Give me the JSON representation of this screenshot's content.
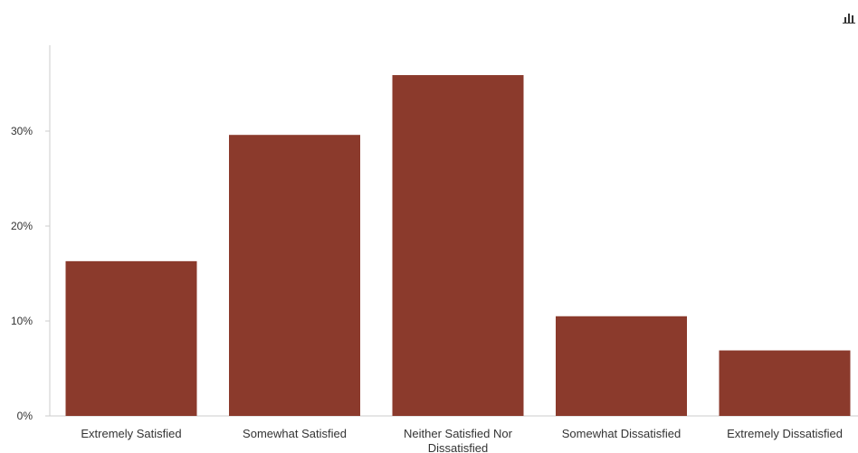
{
  "chart_data": {
    "type": "bar",
    "title": "",
    "xlabel": "",
    "ylabel": "",
    "categories": [
      "Extremely Satisfied",
      "Somewhat Satisfied",
      "Neither Satisfied Nor Dissatisfied",
      "Somewhat Dissatisfied",
      "Extremely Dissatisfied"
    ],
    "category_label_lines": [
      [
        "Extremely Satisfied"
      ],
      [
        "Somewhat Satisfied"
      ],
      [
        "Neither Satisfied Nor",
        "Dissatisfied"
      ],
      [
        "Somewhat Dissatisfied"
      ],
      [
        "Extremely Dissatisfied"
      ]
    ],
    "values": [
      16.3,
      29.6,
      35.9,
      10.5,
      6.9
    ],
    "ylim": [
      0,
      38
    ],
    "yticks": [
      0,
      10,
      20,
      30
    ],
    "ytick_labels": [
      "0%",
      "10%",
      "20%",
      "30%"
    ],
    "grid": false,
    "legend": "none"
  },
  "colors": {
    "bar": "#8b3a2c",
    "axis": "#cccccc",
    "text": "#333333",
    "icon": "#333333"
  },
  "icons": {
    "chart_menu": "bar-chart-icon"
  }
}
